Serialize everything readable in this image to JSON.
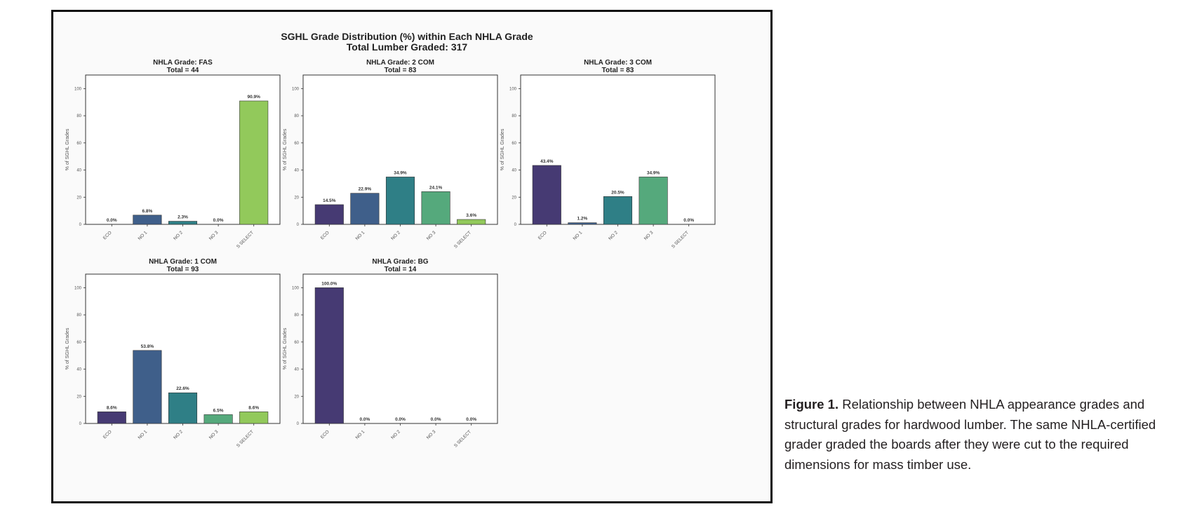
{
  "caption": {
    "label": "Figure 1.",
    "text": "Relationship between NHLA appearance grades and structural grades for hardwood lumber. The same NHLA-certified grader graded the boards after they were cut to the required dimensions for mass timber use."
  },
  "chart_data": {
    "title": "SGHL Grade Distribution (%) within Each NHLA Grade",
    "subtitle": "Total Lumber Graded: 317",
    "colors": {
      "ECO": "#463a73",
      "NO 1": "#3f5f8a",
      "NO 2": "#2f7f86",
      "NO 3": "#55a97c",
      "S SELECT": "#92c95b"
    },
    "charts": [
      {
        "type": "bar",
        "title": "NHLA Grade: FAS",
        "subtitle": "Total = 44",
        "categories": [
          "ECO",
          "NO 1",
          "NO 2",
          "NO 3",
          "S SELECT"
        ],
        "values": [
          0.0,
          6.8,
          2.3,
          0.0,
          90.9
        ],
        "value_labels": [
          "0.0%",
          "6.8%",
          "2.3%",
          "0.0%",
          "90.9%"
        ],
        "ylabel": "% of SGHL Grades",
        "ylim": [
          0,
          110
        ],
        "yticks": [
          "0",
          "20",
          "40",
          "60",
          "80",
          "100"
        ]
      },
      {
        "type": "bar",
        "title": "NHLA Grade: 2 COM",
        "subtitle": "Total = 83",
        "categories": [
          "ECO",
          "NO 1",
          "NO 2",
          "NO 3",
          "S SELECT"
        ],
        "values": [
          14.5,
          22.9,
          34.9,
          24.1,
          3.6
        ],
        "value_labels": [
          "14.5%",
          "22.9%",
          "34.9%",
          "24.1%",
          "3.6%"
        ],
        "ylabel": "% of SGHL Grades",
        "ylim": [
          0,
          110
        ],
        "yticks": [
          "0",
          "20",
          "40",
          "60",
          "80",
          "100"
        ]
      },
      {
        "type": "bar",
        "title": "NHLA Grade: 3 COM",
        "subtitle": "Total = 83",
        "categories": [
          "ECO",
          "NO 1",
          "NO 2",
          "NO 3",
          "S SELECT"
        ],
        "values": [
          43.4,
          1.2,
          20.5,
          34.9,
          0.0
        ],
        "value_labels": [
          "43.4%",
          "1.2%",
          "20.5%",
          "34.9%",
          "0.0%"
        ],
        "ylabel": "% of SGHL Grades",
        "ylim": [
          0,
          110
        ],
        "yticks": [
          "0",
          "20",
          "40",
          "60",
          "80",
          "100"
        ]
      },
      {
        "type": "bar",
        "title": "NHLA Grade: 1 COM",
        "subtitle": "Total = 93",
        "categories": [
          "ECO",
          "NO 1",
          "NO 2",
          "NO 3",
          "S SELECT"
        ],
        "values": [
          8.6,
          53.8,
          22.6,
          6.5,
          8.6
        ],
        "value_labels": [
          "8.6%",
          "53.8%",
          "22.6%",
          "6.5%",
          "8.6%"
        ],
        "ylabel": "% of SGHL Grades",
        "ylim": [
          0,
          110
        ],
        "yticks": [
          "0",
          "20",
          "40",
          "60",
          "80",
          "100"
        ]
      },
      {
        "type": "bar",
        "title": "NHLA Grade: BG",
        "subtitle": "Total = 14",
        "categories": [
          "ECO",
          "NO 1",
          "NO 2",
          "NO 3",
          "S SELECT"
        ],
        "values": [
          100.0,
          0.0,
          0.0,
          0.0,
          0.0
        ],
        "value_labels": [
          "100.0%",
          "0.0%",
          "0.0%",
          "0.0%",
          "0.0%"
        ],
        "ylabel": "% of SGHL Grades",
        "ylim": [
          0,
          110
        ],
        "yticks": [
          "0",
          "20",
          "40",
          "60",
          "80",
          "100"
        ]
      }
    ]
  }
}
